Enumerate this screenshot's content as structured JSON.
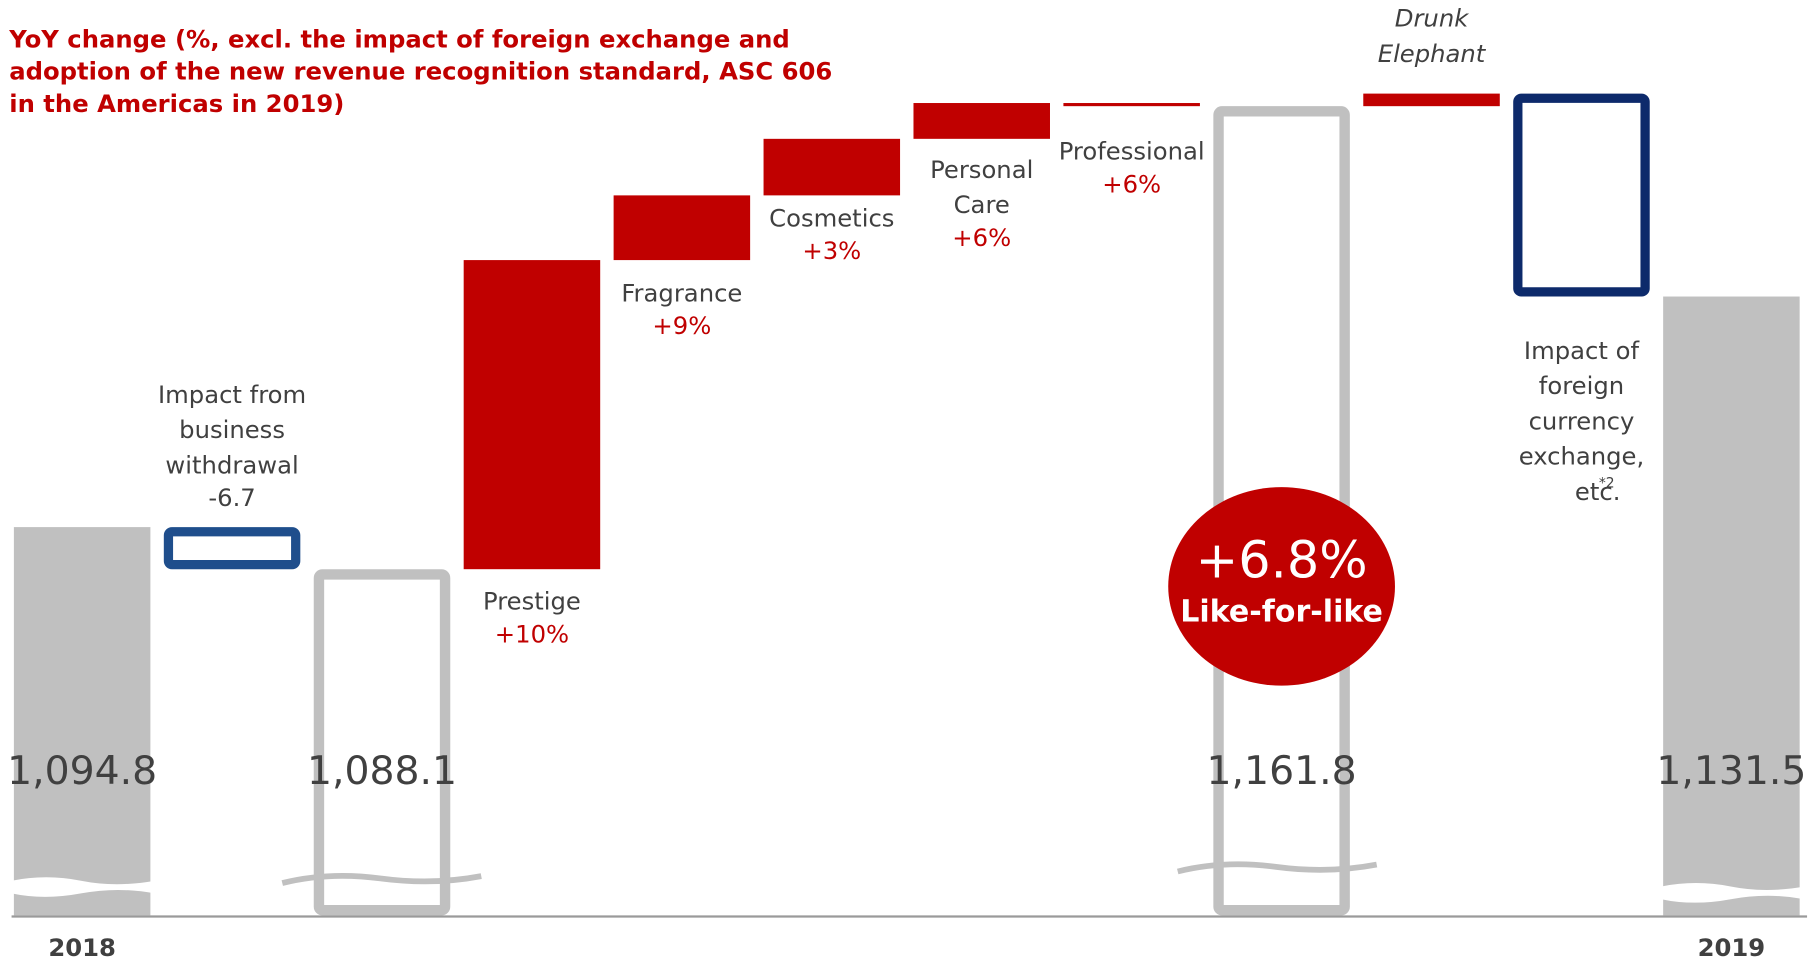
{
  "chart_data": {
    "type": "waterfall",
    "title": [
      "YoY change (%, excl. the impact of foreign exchange and",
      "adoption of the new revenue recognition standard, ASC 606",
      "in the Americas in 2019)"
    ],
    "ylim": [
      1033,
      1164
    ],
    "items": [
      {
        "name": "2018",
        "value": 1094.8,
        "value_label": "1,094.8",
        "total": true,
        "color": "#c0c0c0",
        "outline": false
      },
      {
        "name": [
          "Impact from",
          "business",
          "withdrawal"
        ],
        "value": -6.7,
        "color": "#1f4e8c",
        "outline": true
      },
      {
        "value": 1088.1,
        "value_label": "1,088.1",
        "total": true,
        "color": "#c0c0c0",
        "outline": true
      },
      {
        "name": [
          "Prestige"
        ],
        "change": "+10%",
        "value": 49.2,
        "color": "#c00000",
        "outline": false
      },
      {
        "name": [
          "Fragrance"
        ],
        "change": "+9%",
        "value": 10.3,
        "color": "#c00000",
        "outline": false
      },
      {
        "name": [
          "Cosmetics"
        ],
        "change": "+3%",
        "value": 9.0,
        "color": "#c00000",
        "outline": false
      },
      {
        "name": [
          "Personal",
          "Care"
        ],
        "change": "+6%",
        "value": 5.7,
        "color": "#c00000",
        "outline": false
      },
      {
        "name": [
          "Professional"
        ],
        "change": "+6%",
        "value": -0.5,
        "color": "#c00000",
        "outline": false
      },
      {
        "value": 1161.8,
        "value_label": "1,161.8",
        "total": true,
        "color": "#c0c0c0",
        "outline": true,
        "badge": "+6.8%",
        "badge_label": "Like-for-like"
      },
      {
        "name": [
          "Drunk",
          "Elephant"
        ],
        "value": 2.0,
        "color": "#c00000",
        "outline": false,
        "italic": true
      },
      {
        "name": [
          "Impact of",
          "foreign",
          "currency",
          "exchange,",
          "etc."
        ],
        "note": "*2",
        "value": -32.3,
        "color": "#0d2a6b",
        "outline": true
      },
      {
        "name": "2019",
        "value": 1131.5,
        "value_label": "1,131.5",
        "total": true,
        "color": "#c0c0c0",
        "outline": false
      }
    ]
  }
}
